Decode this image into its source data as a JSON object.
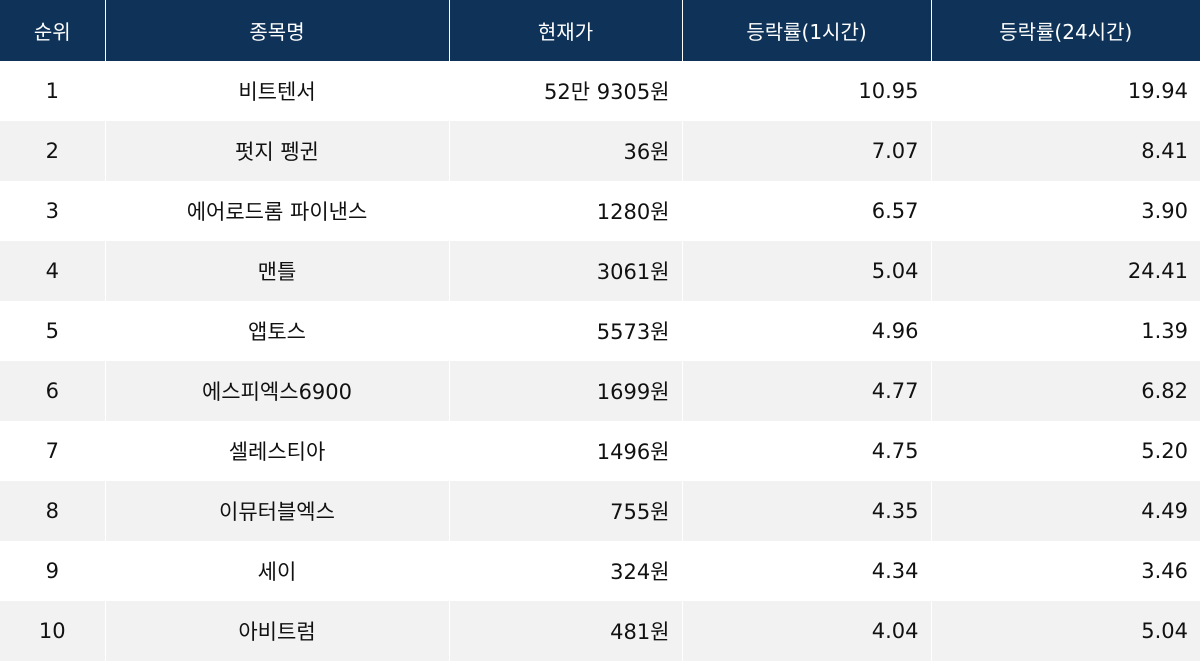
{
  "headers": {
    "rank": "순위",
    "name": "종목명",
    "price": "현재가",
    "change_1h": "등락률(1시간)",
    "change_24h": "등락률(24시간)"
  },
  "rows": [
    {
      "rank": "1",
      "name": "비트텐서",
      "price": "52만 9305원",
      "change_1h": "10.95",
      "change_24h": "19.94"
    },
    {
      "rank": "2",
      "name": "펏지 펭귄",
      "price": "36원",
      "change_1h": "7.07",
      "change_24h": "8.41"
    },
    {
      "rank": "3",
      "name": "에어로드롬 파이낸스",
      "price": "1280원",
      "change_1h": "6.57",
      "change_24h": "3.90"
    },
    {
      "rank": "4",
      "name": "맨틀",
      "price": "3061원",
      "change_1h": "5.04",
      "change_24h": "24.41"
    },
    {
      "rank": "5",
      "name": "앱토스",
      "price": "5573원",
      "change_1h": "4.96",
      "change_24h": "1.39"
    },
    {
      "rank": "6",
      "name": "에스피엑스6900",
      "price": "1699원",
      "change_1h": "4.77",
      "change_24h": "6.82"
    },
    {
      "rank": "7",
      "name": "셀레스티아",
      "price": "1496원",
      "change_1h": "4.75",
      "change_24h": "5.20"
    },
    {
      "rank": "8",
      "name": "이뮤터블엑스",
      "price": "755원",
      "change_1h": "4.35",
      "change_24h": "4.49"
    },
    {
      "rank": "9",
      "name": "세이",
      "price": "324원",
      "change_1h": "4.34",
      "change_24h": "3.46"
    },
    {
      "rank": "10",
      "name": "아비트럼",
      "price": "481원",
      "change_1h": "4.04",
      "change_24h": "5.04"
    }
  ],
  "colors": {
    "header_bg": "#0e3258",
    "header_text": "#ffffff",
    "row_alt_bg": "#f2f2f2"
  }
}
